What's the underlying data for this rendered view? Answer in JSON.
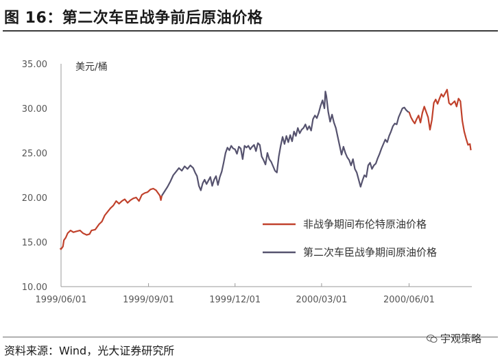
{
  "figure": {
    "title": "图 16：第二次车臣战争前后原油价格",
    "source": "资料来源：Wind，光大证券研究所",
    "watermark": "宇观策略",
    "watermark_icon": "wechat-icon"
  },
  "colors": {
    "non_war": "#c0412b",
    "war": "#55526e",
    "axis": "#9a9a9a"
  },
  "chart_data": {
    "type": "line",
    "title": "",
    "unit": "美元/桶",
    "ylim": [
      10,
      35
    ],
    "yticks": [
      "35.00",
      "30.00",
      "25.00",
      "20.00",
      "15.00",
      "10.00"
    ],
    "ytick_values": [
      35,
      30,
      25,
      20,
      15,
      10
    ],
    "xlim": [
      "1999-06-01",
      "2000-08-06"
    ],
    "xticks": [
      "1999/06/01",
      "1999/09/01",
      "1999/12/01",
      "2000/03/01",
      "2000/06/01"
    ],
    "xtick_dates": [
      "1999-06-01",
      "1999-09-01",
      "1999-12-01",
      "2000-03-01",
      "2000-06-01"
    ],
    "legend_position": "right",
    "grid": false,
    "series": [
      {
        "name": "非战争期间布伦特原油价格",
        "color_key": "non_war",
        "points": [
          [
            "1999-05-31",
            14.3
          ],
          [
            "1999-06-01",
            14.2
          ],
          [
            "1999-06-03",
            14.5
          ],
          [
            "1999-06-04",
            15.2
          ],
          [
            "1999-06-06",
            15.5
          ],
          [
            "1999-06-08",
            16.0
          ],
          [
            "1999-06-11",
            16.3
          ],
          [
            "1999-06-14",
            16.1
          ],
          [
            "1999-06-17",
            16.2
          ],
          [
            "1999-06-21",
            16.3
          ],
          [
            "1999-06-24",
            16.0
          ],
          [
            "1999-06-28",
            15.8
          ],
          [
            "1999-07-01",
            15.9
          ],
          [
            "1999-07-03",
            16.3
          ],
          [
            "1999-07-07",
            16.4
          ],
          [
            "1999-07-11",
            17.0
          ],
          [
            "1999-07-14",
            17.3
          ],
          [
            "1999-07-17",
            18.0
          ],
          [
            "1999-07-20",
            18.4
          ],
          [
            "1999-07-23",
            18.8
          ],
          [
            "1999-07-26",
            19.1
          ],
          [
            "1999-07-29",
            19.6
          ],
          [
            "1999-08-01",
            19.3
          ],
          [
            "1999-08-04",
            19.6
          ],
          [
            "1999-08-07",
            19.8
          ],
          [
            "1999-08-10",
            19.4
          ],
          [
            "1999-08-13",
            19.7
          ],
          [
            "1999-08-16",
            19.9
          ],
          [
            "1999-08-19",
            20.0
          ],
          [
            "1999-08-22",
            19.6
          ],
          [
            "1999-08-25",
            20.3
          ],
          [
            "1999-08-28",
            20.5
          ],
          [
            "1999-08-31",
            20.6
          ],
          [
            "1999-09-03",
            20.9
          ],
          [
            "1999-09-06",
            21.0
          ],
          [
            "1999-09-09",
            20.8
          ],
          [
            "1999-09-11",
            20.5
          ],
          [
            "1999-09-13",
            20.2
          ],
          [
            "1999-09-14",
            19.7
          ],
          [
            "1999-09-15",
            20.2
          ]
        ]
      },
      {
        "name": "第二次车臣战争期间原油价格",
        "color_key": "war",
        "points": [
          [
            "1999-09-15",
            20.2
          ],
          [
            "1999-09-18",
            20.7
          ],
          [
            "1999-09-21",
            21.2
          ],
          [
            "1999-09-24",
            21.8
          ],
          [
            "1999-09-27",
            22.5
          ],
          [
            "1999-09-30",
            22.9
          ],
          [
            "1999-10-03",
            23.3
          ],
          [
            "1999-10-06",
            23.0
          ],
          [
            "1999-10-09",
            23.5
          ],
          [
            "1999-10-12",
            23.2
          ],
          [
            "1999-10-15",
            23.6
          ],
          [
            "1999-10-18",
            23.3
          ],
          [
            "1999-10-20",
            22.8
          ],
          [
            "1999-10-22",
            22.4
          ],
          [
            "1999-10-24",
            21.3
          ],
          [
            "1999-10-26",
            20.8
          ],
          [
            "1999-10-28",
            21.6
          ],
          [
            "1999-10-30",
            22.0
          ],
          [
            "1999-11-01",
            21.5
          ],
          [
            "1999-11-03",
            21.9
          ],
          [
            "1999-11-05",
            22.3
          ],
          [
            "1999-11-07",
            21.3
          ],
          [
            "1999-11-09",
            22.0
          ],
          [
            "1999-11-11",
            22.4
          ],
          [
            "1999-11-13",
            21.4
          ],
          [
            "1999-11-15",
            22.3
          ],
          [
            "1999-11-17",
            22.9
          ],
          [
            "1999-11-19",
            23.9
          ],
          [
            "1999-11-21",
            25.0
          ],
          [
            "1999-11-23",
            25.6
          ],
          [
            "1999-11-25",
            25.3
          ],
          [
            "1999-11-27",
            25.8
          ],
          [
            "1999-11-29",
            25.5
          ],
          [
            "1999-12-01",
            25.4
          ],
          [
            "1999-12-03",
            24.9
          ],
          [
            "1999-12-05",
            25.7
          ],
          [
            "1999-12-07",
            25.5
          ],
          [
            "1999-12-09",
            24.3
          ],
          [
            "1999-12-11",
            25.8
          ],
          [
            "1999-12-13",
            25.6
          ],
          [
            "1999-12-15",
            25.8
          ],
          [
            "1999-12-17",
            25.4
          ],
          [
            "1999-12-19",
            25.7
          ],
          [
            "1999-12-21",
            25.9
          ],
          [
            "1999-12-23",
            25.2
          ],
          [
            "1999-12-25",
            26.1
          ],
          [
            "1999-12-27",
            25.9
          ],
          [
            "1999-12-29",
            24.6
          ],
          [
            "1999-12-31",
            24.2
          ],
          [
            "2000-01-02",
            23.7
          ],
          [
            "2000-01-04",
            25.0
          ],
          [
            "2000-01-06",
            24.3
          ],
          [
            "2000-01-08",
            24.0
          ],
          [
            "2000-01-10",
            23.5
          ],
          [
            "2000-01-12",
            23.0
          ],
          [
            "2000-01-14",
            22.8
          ],
          [
            "2000-01-16",
            24.6
          ],
          [
            "2000-01-18",
            25.8
          ],
          [
            "2000-01-20",
            26.8
          ],
          [
            "2000-01-22",
            26.0
          ],
          [
            "2000-01-24",
            26.9
          ],
          [
            "2000-01-26",
            26.2
          ],
          [
            "2000-01-28",
            27.0
          ],
          [
            "2000-01-30",
            26.3
          ],
          [
            "2000-02-01",
            27.4
          ],
          [
            "2000-02-03",
            26.9
          ],
          [
            "2000-02-05",
            27.8
          ],
          [
            "2000-02-07",
            27.2
          ],
          [
            "2000-02-09",
            27.6
          ],
          [
            "2000-02-11",
            27.8
          ],
          [
            "2000-02-13",
            28.2
          ],
          [
            "2000-02-15",
            27.6
          ],
          [
            "2000-02-17",
            28.0
          ],
          [
            "2000-02-19",
            27.5
          ],
          [
            "2000-02-21",
            28.8
          ],
          [
            "2000-02-23",
            29.2
          ],
          [
            "2000-02-25",
            28.9
          ],
          [
            "2000-02-27",
            29.5
          ],
          [
            "2000-02-29",
            30.3
          ],
          [
            "2000-03-02",
            30.9
          ],
          [
            "2000-03-04",
            30.0
          ],
          [
            "2000-03-05",
            31.9
          ],
          [
            "2000-03-06",
            31.4
          ],
          [
            "2000-03-08",
            29.6
          ],
          [
            "2000-03-10",
            28.5
          ],
          [
            "2000-03-12",
            29.3
          ],
          [
            "2000-03-14",
            28.4
          ],
          [
            "2000-03-16",
            27.8
          ],
          [
            "2000-03-18",
            26.8
          ],
          [
            "2000-03-20",
            25.8
          ],
          [
            "2000-03-22",
            24.8
          ],
          [
            "2000-03-24",
            25.7
          ],
          [
            "2000-03-26",
            25.0
          ],
          [
            "2000-03-28",
            24.5
          ],
          [
            "2000-03-30",
            24.2
          ],
          [
            "2000-04-01",
            23.6
          ],
          [
            "2000-04-03",
            24.3
          ],
          [
            "2000-04-05",
            23.2
          ],
          [
            "2000-04-07",
            22.8
          ],
          [
            "2000-04-09",
            22.0
          ],
          [
            "2000-04-11",
            21.2
          ],
          [
            "2000-04-13",
            21.9
          ],
          [
            "2000-04-15",
            22.5
          ],
          [
            "2000-04-17",
            22.3
          ],
          [
            "2000-04-19",
            23.6
          ],
          [
            "2000-04-21",
            23.9
          ],
          [
            "2000-04-23",
            23.2
          ],
          [
            "2000-04-25",
            23.6
          ],
          [
            "2000-04-27",
            23.8
          ],
          [
            "2000-04-29",
            24.4
          ],
          [
            "2000-05-01",
            24.9
          ],
          [
            "2000-05-03",
            25.5
          ],
          [
            "2000-05-05",
            26.0
          ],
          [
            "2000-05-07",
            26.5
          ],
          [
            "2000-05-09",
            26.2
          ],
          [
            "2000-05-11",
            26.9
          ],
          [
            "2000-05-13",
            27.4
          ],
          [
            "2000-05-15",
            28.0
          ],
          [
            "2000-05-17",
            28.3
          ],
          [
            "2000-05-19",
            28.2
          ],
          [
            "2000-05-21",
            29.0
          ],
          [
            "2000-05-23",
            29.5
          ],
          [
            "2000-05-25",
            30.0
          ],
          [
            "2000-05-27",
            30.1
          ],
          [
            "2000-05-29",
            29.8
          ],
          [
            "2000-05-31",
            29.6
          ],
          [
            "2000-06-01",
            29.6
          ]
        ]
      },
      {
        "name": "",
        "color_key": "non_war",
        "points": [
          [
            "2000-06-01",
            29.6
          ],
          [
            "2000-06-03",
            29.0
          ],
          [
            "2000-06-05",
            28.6
          ],
          [
            "2000-06-07",
            28.3
          ],
          [
            "2000-06-09",
            28.8
          ],
          [
            "2000-06-11",
            29.2
          ],
          [
            "2000-06-13",
            28.4
          ],
          [
            "2000-06-15",
            29.5
          ],
          [
            "2000-06-17",
            30.2
          ],
          [
            "2000-06-19",
            29.6
          ],
          [
            "2000-06-21",
            29.0
          ],
          [
            "2000-06-23",
            27.6
          ],
          [
            "2000-06-25",
            28.7
          ],
          [
            "2000-06-27",
            30.6
          ],
          [
            "2000-06-29",
            31.0
          ],
          [
            "2000-07-01",
            30.5
          ],
          [
            "2000-07-03",
            31.1
          ],
          [
            "2000-07-05",
            31.6
          ],
          [
            "2000-07-07",
            31.3
          ],
          [
            "2000-07-09",
            31.7
          ],
          [
            "2000-07-11",
            32.1
          ],
          [
            "2000-07-13",
            30.6
          ],
          [
            "2000-07-15",
            30.4
          ],
          [
            "2000-07-17",
            30.6
          ],
          [
            "2000-07-19",
            30.8
          ],
          [
            "2000-07-21",
            30.2
          ],
          [
            "2000-07-23",
            31.1
          ],
          [
            "2000-07-25",
            30.8
          ],
          [
            "2000-07-27",
            28.6
          ],
          [
            "2000-07-29",
            27.4
          ],
          [
            "2000-07-31",
            26.6
          ],
          [
            "2000-08-02",
            25.9
          ],
          [
            "2000-08-04",
            26.0
          ],
          [
            "2000-08-05",
            25.3
          ]
        ]
      }
    ]
  }
}
